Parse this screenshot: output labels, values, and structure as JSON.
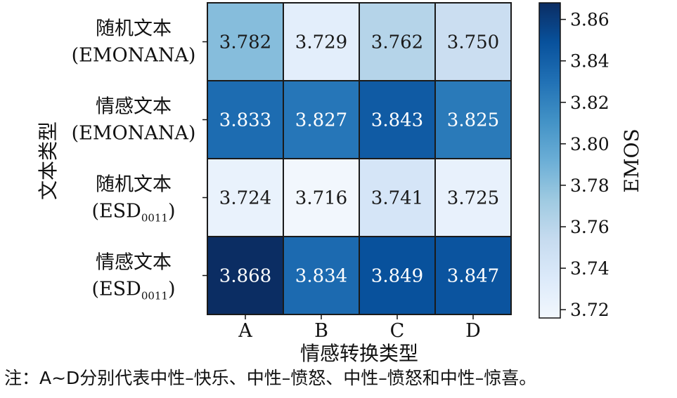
{
  "chart_data": {
    "type": "heatmap",
    "x_categories": [
      "A",
      "B",
      "C",
      "D"
    ],
    "y_categories": [
      {
        "line1": "随机文本",
        "line2": "(EMONANA)",
        "sub": ""
      },
      {
        "line1": "情感文本",
        "line2": "(EMONANA)",
        "sub": ""
      },
      {
        "line1": "随机文本",
        "line2": "(ESD",
        "sub": "0011",
        "close": ")"
      },
      {
        "line1": "情感文本",
        "line2": "(ESD",
        "sub": "0011",
        "close": ")"
      }
    ],
    "values": [
      [
        3.782,
        3.729,
        3.762,
        3.75
      ],
      [
        3.833,
        3.827,
        3.843,
        3.825
      ],
      [
        3.724,
        3.716,
        3.741,
        3.725
      ],
      [
        3.868,
        3.834,
        3.849,
        3.847
      ]
    ],
    "xlabel": "情感转换类型",
    "ylabel": "文本类型",
    "colorbar": {
      "label": "EMOS",
      "range": [
        3.716,
        3.868
      ],
      "ticks": [
        "3.72",
        "3.74",
        "3.76",
        "3.78",
        "3.80",
        "3.82",
        "3.84",
        "3.86"
      ],
      "colormap": "Blues"
    },
    "note": "注：A~D分别代表中性–快乐、中性–愤怒、中性–愤怒和中性–惊喜。"
  }
}
